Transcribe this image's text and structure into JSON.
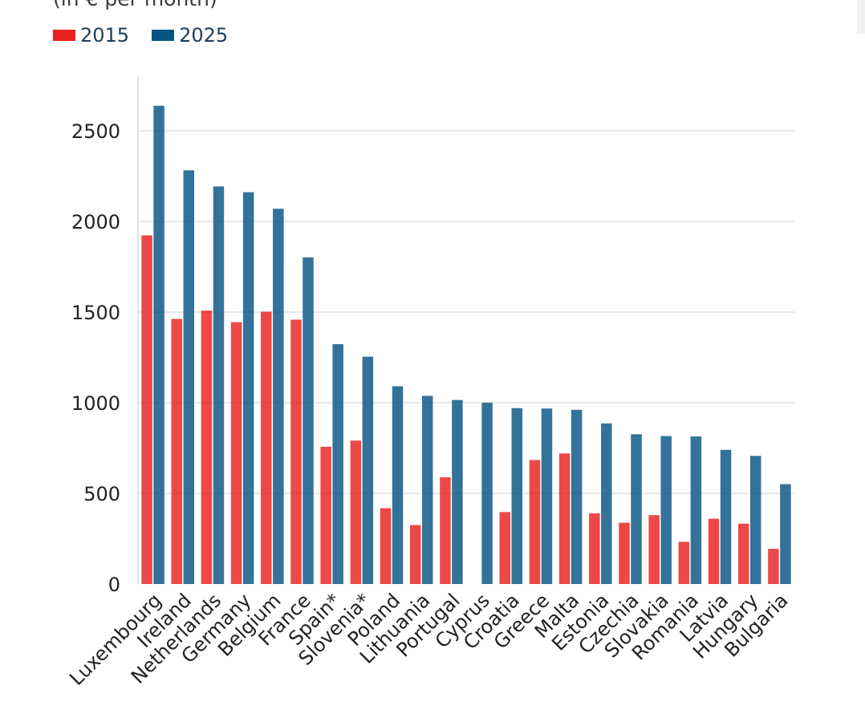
{
  "subtitle": "(in € per month)",
  "colors": {
    "series_2015": "#e8201f",
    "series_2025": "#075482",
    "grid": "#e9e9e9",
    "tick_text": "#222222"
  },
  "chart_data": {
    "type": "bar",
    "title": "",
    "xlabel": "",
    "ylabel": "",
    "ylim": [
      0,
      2700
    ],
    "yticks": [
      0,
      500,
      1000,
      1500,
      2000,
      2500
    ],
    "grid": true,
    "legend_position": "top-left",
    "categories": [
      "Luxembourg",
      "Ireland",
      "Netherlands",
      "Germany",
      "Belgium",
      "France",
      "Spain*",
      "Slovenia*",
      "Poland",
      "Lithuania",
      "Portugal",
      "Cyprus",
      "Croatia",
      "Greece",
      "Malta",
      "Estonia",
      "Czechia",
      "Slovakia",
      "Romania",
      "Latvia",
      "Hungary",
      "Bulgaria"
    ],
    "series": [
      {
        "name": "2015",
        "values": [
          1923,
          1462,
          1508,
          1444,
          1502,
          1458,
          757,
          791,
          418,
          325,
          589,
          null,
          397,
          684,
          720,
          390,
          338,
          380,
          233,
          360,
          333,
          194
        ]
      },
      {
        "name": "2025",
        "values": [
          2638,
          2282,
          2193,
          2161,
          2070,
          1802,
          1323,
          1254,
          1091,
          1038,
          1015,
          1000,
          970,
          968,
          961,
          886,
          826,
          816,
          814,
          740,
          707,
          551
        ]
      }
    ]
  }
}
